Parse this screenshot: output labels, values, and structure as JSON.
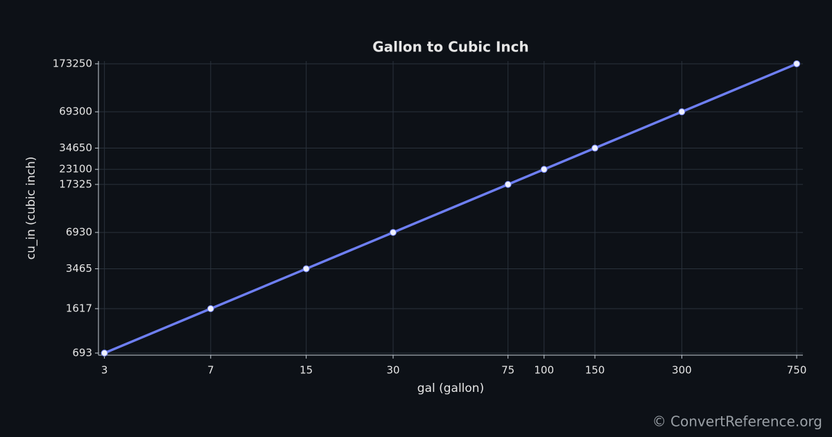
{
  "chart_data": {
    "type": "line",
    "title": "Gallon to Cubic Inch",
    "x_label": "gal (gallon)",
    "y_label": "cu_in (cubic inch)",
    "x": [
      3,
      7,
      15,
      30,
      75,
      100,
      150,
      300,
      750
    ],
    "series": [
      {
        "name": "cu_in",
        "color": "#6e7ff3",
        "values": [
          693,
          1617,
          3465,
          6930,
          17325,
          23100,
          34650,
          69300,
          173250
        ]
      }
    ],
    "xlim": [
      2.86,
      788
    ],
    "ylim": [
      666,
      182600
    ],
    "xticks": [
      3,
      7,
      15,
      30,
      75,
      100,
      150,
      300,
      750
    ],
    "yticks": [
      693,
      1617,
      3465,
      6930,
      17325,
      23100,
      34650,
      69300,
      173250
    ],
    "x_scale": "log",
    "y_scale": "log",
    "grid": true,
    "footer": "© ConvertReference.org"
  }
}
